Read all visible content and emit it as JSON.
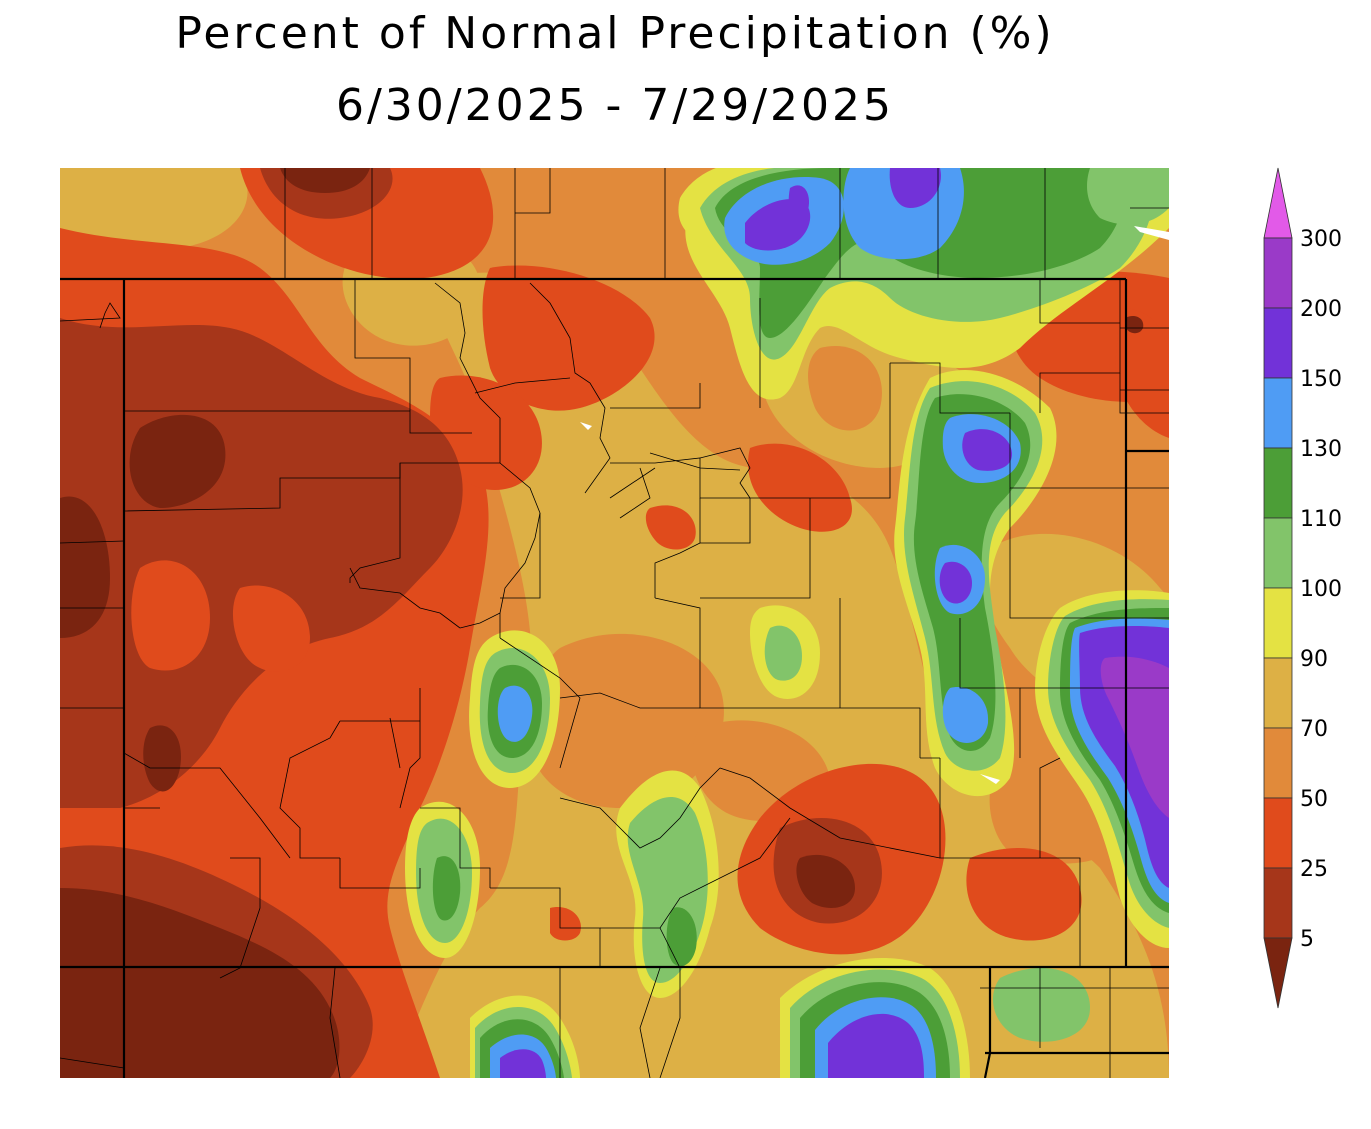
{
  "title": {
    "line1": "Percent of Normal Precipitation (%)",
    "line2": "6/30/2025 - 7/29/2025"
  },
  "legend": {
    "ticks": [
      "5",
      "25",
      "50",
      "70",
      "90",
      "100",
      "110",
      "130",
      "150",
      "200",
      "300"
    ],
    "colors": {
      "lt5": "#7a2410",
      "c5_25": "#a6361a",
      "c25_50": "#e04b1c",
      "c50_70": "#e18a3a",
      "c70_90": "#ddb045",
      "c90_100": "#e4e243",
      "c100_110": "#82c46a",
      "c110_130": "#4c9e37",
      "c130_150": "#4f9cf4",
      "c150_200": "#7232d8",
      "c200_300": "#9a3ac8",
      "gt300": "#e25ae8"
    }
  },
  "map": {
    "region": "Colorado",
    "palette": {
      "lt5": "#7a2410",
      "c5_25": "#a6361a",
      "c25_50": "#e04b1c",
      "c50_70": "#e18a3a",
      "c70_90": "#ddb045",
      "c90_100": "#e4e243",
      "c100_110": "#82c46a",
      "c110_130": "#4c9e37",
      "c130_150": "#4f9cf4",
      "c150_200": "#7232d8"
    }
  }
}
